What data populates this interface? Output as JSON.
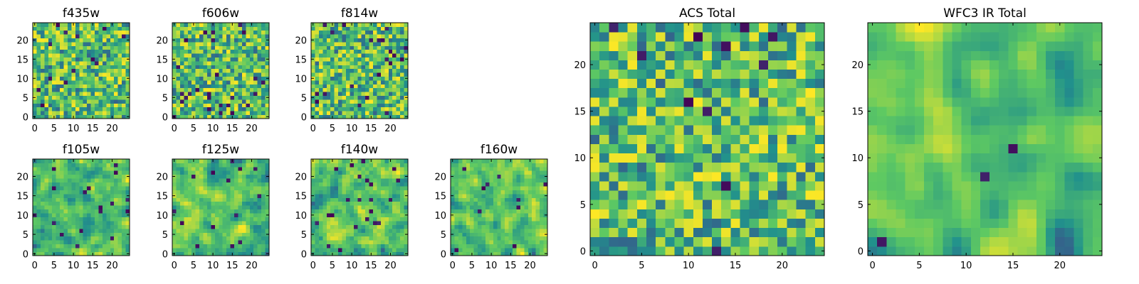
{
  "figure": {
    "description_colormap": "viridis",
    "colors": [
      "#440154",
      "#3b528b",
      "#21918c",
      "#5ec962",
      "#fde725"
    ]
  },
  "chart_data": [
    {
      "type": "heatmap",
      "title": "f435w",
      "size": 25,
      "xticks": [
        0,
        5,
        10,
        15,
        20
      ],
      "yticks": [
        0,
        5,
        10,
        15,
        20
      ],
      "seed": 11,
      "smooth": 0,
      "darkFrac": 0.03
    },
    {
      "type": "heatmap",
      "title": "f606w",
      "size": 25,
      "xticks": [
        0,
        5,
        10,
        15,
        20
      ],
      "yticks": [
        0,
        5,
        10,
        15,
        20
      ],
      "seed": 23,
      "smooth": 0,
      "darkFrac": 0.035
    },
    {
      "type": "heatmap",
      "title": "f814w",
      "size": 25,
      "xticks": [
        0,
        5,
        10,
        15,
        20
      ],
      "yticks": [
        0,
        5,
        10,
        15,
        20
      ],
      "seed": 37,
      "smooth": 0,
      "darkFrac": 0.035
    },
    {
      "type": "heatmap",
      "title": "f105w",
      "size": 25,
      "xticks": [
        0,
        5,
        10,
        15,
        20
      ],
      "yticks": [
        0,
        5,
        10,
        15,
        20
      ],
      "seed": 41,
      "smooth": 1,
      "darkFrac": 0.02
    },
    {
      "type": "heatmap",
      "title": "f125w",
      "size": 25,
      "xticks": [
        0,
        5,
        10,
        15,
        20
      ],
      "yticks": [
        0,
        5,
        10,
        15,
        20
      ],
      "seed": 53,
      "smooth": 1,
      "darkFrac": 0.025
    },
    {
      "type": "heatmap",
      "title": "f140w",
      "size": 25,
      "xticks": [
        0,
        5,
        10,
        15,
        20
      ],
      "yticks": [
        0,
        5,
        10,
        15,
        20
      ],
      "seed": 67,
      "smooth": 1,
      "darkFrac": 0.025
    },
    {
      "type": "heatmap",
      "title": "f160w",
      "size": 25,
      "xticks": [
        0,
        5,
        10,
        15,
        20
      ],
      "yticks": [
        0,
        5,
        10,
        15,
        20
      ],
      "seed": 79,
      "smooth": 1,
      "darkFrac": 0.025
    },
    {
      "type": "heatmap",
      "title": "ACS Total",
      "size": 25,
      "xticks": [
        0,
        5,
        10,
        15,
        20
      ],
      "yticks": [
        0,
        5,
        10,
        15,
        20
      ],
      "seed": 97,
      "smooth": 0,
      "darkFrac": 0.02
    },
    {
      "type": "heatmap",
      "title": "WFC3 IR Total",
      "size": 25,
      "xticks": [
        0,
        5,
        10,
        15,
        20
      ],
      "yticks": [
        0,
        5,
        10,
        15,
        20
      ],
      "seed": 131,
      "smooth": 2,
      "darkFrac": 0.012
    }
  ]
}
